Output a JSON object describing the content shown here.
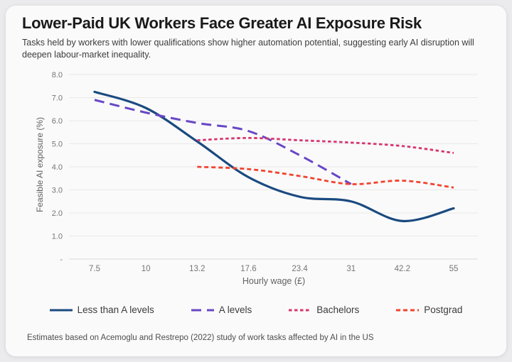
{
  "header": {
    "title": "Lower-Paid UK Workers Face Greater AI Exposure Risk",
    "subtitle": "Tasks held by workers with lower qualifications show higher automation potential, suggesting early AI disruption will deepen labour-market inequality."
  },
  "footnote": "Estimates based on Acemoglu and Restrepo (2022) study of work tasks affected by AI in the US",
  "colors": {
    "card_background": "#fafafa",
    "page_background": "#ebebed",
    "gridline": "#e8e8ea",
    "axis_baseline": "#d8d8da",
    "tick_text": "#757575",
    "axis_title_text": "#616161",
    "navy": "#1a4a80",
    "purple": "#6847c6",
    "crimson": "#d6356f",
    "red_orange": "#f2432f"
  },
  "chart_data": {
    "type": "line",
    "title": "Lower-Paid UK Workers Face Greater AI Exposure Risk",
    "subtitle": "Tasks held by workers with lower qualifications show higher automation potential, suggesting early AI disruption will deepen labour-market inequality.",
    "xlabel": "Hourly wage (£)",
    "ylabel": "Feasible AI exposure (%)",
    "x_spacing": "equal",
    "x": [
      7.5,
      10,
      13.2,
      17.6,
      23.4,
      31,
      42.2,
      55
    ],
    "x_tick_labels": [
      "7.5",
      "10",
      "13.2",
      "17.6",
      "23.4",
      "31",
      "42.2",
      "55"
    ],
    "ylim": [
      0,
      8
    ],
    "y_ticks": {
      "values": [
        8,
        7,
        6,
        5,
        4,
        3,
        2,
        1,
        0
      ],
      "labels": [
        "8.0",
        "7.0",
        "6.0",
        "5.0",
        "4.0",
        "3.0",
        "2.0",
        "1.0",
        "-"
      ]
    },
    "grid": "horizontal",
    "legend_position": "bottom",
    "series": [
      {
        "name": "Less than A levels",
        "key": "less-than-a-levels",
        "color": "#1a4a80",
        "style": "solid",
        "dash": "",
        "width": 3.2,
        "values": [
          7.25,
          6.55,
          5.1,
          3.55,
          2.7,
          2.5,
          1.65,
          2.2
        ]
      },
      {
        "name": "A levels",
        "key": "a-levels",
        "color": "#6847c6",
        "style": "long-dash",
        "dash": "14 8",
        "width": 3,
        "values": [
          6.9,
          6.35,
          5.9,
          5.55,
          4.5,
          3.25,
          null,
          null
        ]
      },
      {
        "name": "Bachelors",
        "key": "bachelors",
        "color": "#d6356f",
        "style": "short-dash",
        "dash": "4.5 3.5",
        "width": 2.8,
        "values": [
          null,
          null,
          5.15,
          5.25,
          5.15,
          5.05,
          4.9,
          4.6
        ]
      },
      {
        "name": "Postgrad",
        "key": "postgrad",
        "color": "#f2432f",
        "style": "short-dash",
        "dash": "6 4",
        "width": 2.8,
        "values": [
          null,
          null,
          4.0,
          3.9,
          3.6,
          3.25,
          3.4,
          3.1
        ]
      }
    ]
  }
}
